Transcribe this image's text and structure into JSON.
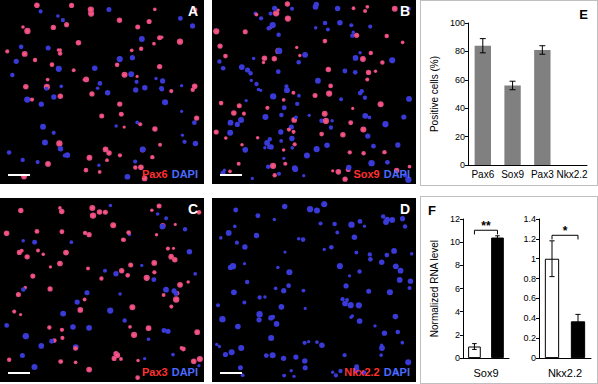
{
  "images": [
    {
      "label": "A",
      "stain": "Pax6",
      "counterstain": "DAPI"
    },
    {
      "label": "B",
      "stain": "Sox9",
      "counterstain": "DAPI"
    },
    {
      "label": "C",
      "stain": "Pax3",
      "counterstain": "DAPI"
    },
    {
      "label": "D",
      "stain": "Nkx2.2",
      "counterstain": "DAPI"
    }
  ],
  "chart_data": [
    {
      "type": "bar",
      "title": "E",
      "ylabel": "Positive cells (%)",
      "categories": [
        "Pax6",
        "Sox9",
        "Pax3",
        "Nkx2.2"
      ],
      "values": [
        84,
        56,
        81,
        0
      ],
      "errors": [
        5,
        3,
        3,
        0
      ],
      "color": "#808080",
      "ylim": [
        0,
        100
      ],
      "yticks": [
        0,
        20,
        40,
        60,
        80,
        100
      ],
      "grid": false
    },
    {
      "type": "bar",
      "title": "F",
      "xlabel": "Sox9",
      "ylabel": "Normalized RNA level",
      "categories": [
        null,
        null
      ],
      "values": [
        1,
        10.4
      ],
      "errors": [
        0.25,
        0.15
      ],
      "colors": [
        "#ffffff",
        "#000000"
      ],
      "ylim": [
        0,
        12
      ],
      "yticks": [
        0,
        2,
        4,
        6,
        8,
        10,
        12
      ],
      "annotation": "**",
      "grid": false
    },
    {
      "type": "bar",
      "xlabel": "Nkx2.2",
      "categories": [
        null,
        null
      ],
      "values": [
        1,
        0.37
      ],
      "errors": [
        0.18,
        0.07
      ],
      "colors": [
        "#ffffff",
        "#000000"
      ],
      "ylim": [
        0,
        1.4
      ],
      "yticks": [
        0,
        0.2,
        0.4,
        0.6,
        0.8,
        1,
        1.2,
        1.4
      ],
      "annotation": "*",
      "grid": false
    }
  ]
}
